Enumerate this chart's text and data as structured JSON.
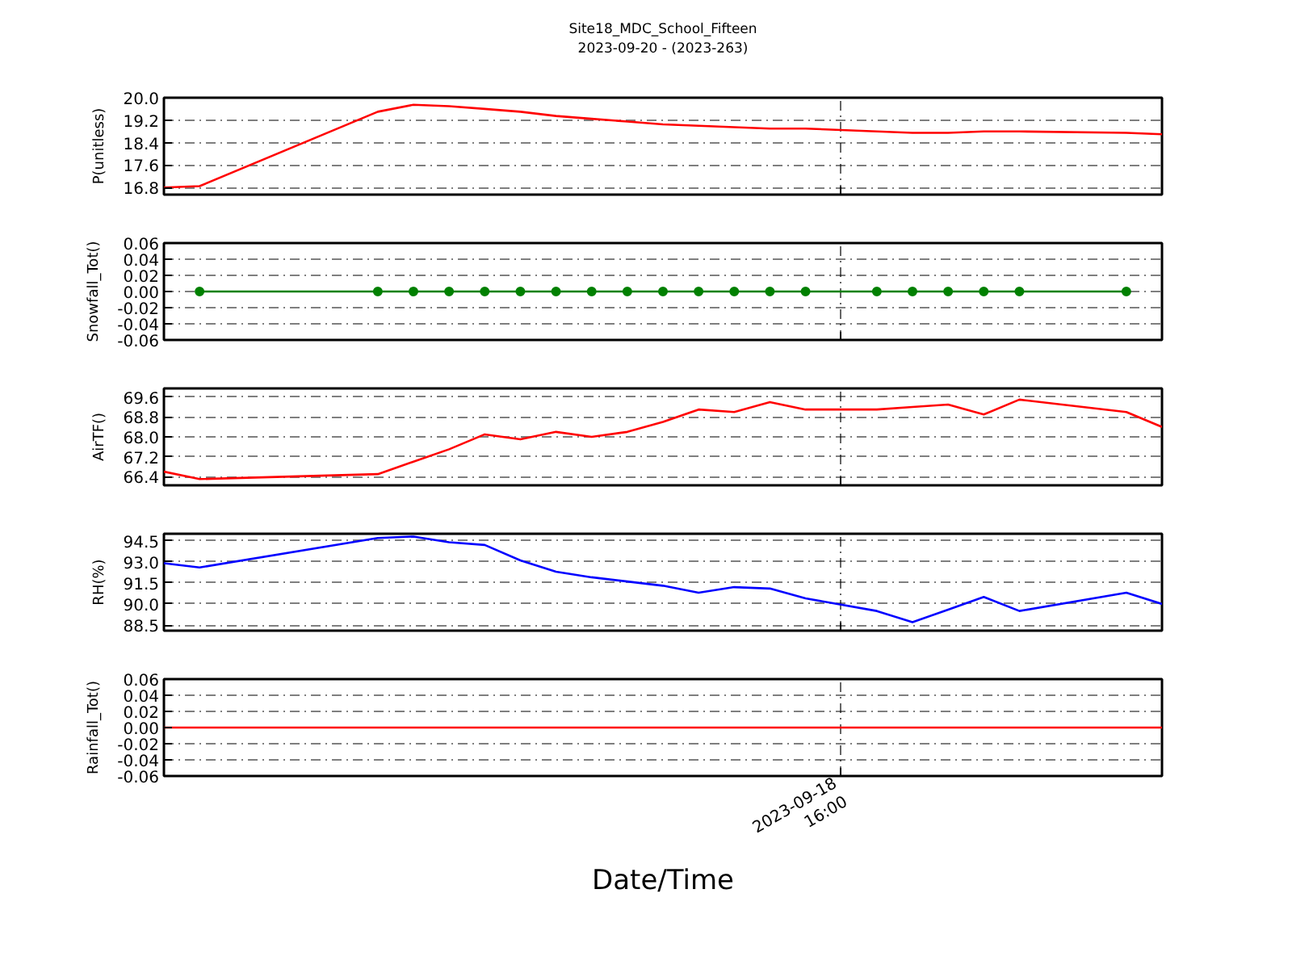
{
  "chart_data": [
    {
      "type": "line",
      "title": "Site18_MDC_School_Fifteen",
      "subtitle": "2023-09-20 - (2023-263)",
      "ylabel": "P(unitless)",
      "categories": [
        null,
        null,
        null,
        null,
        null,
        null,
        null,
        null,
        null,
        null,
        null,
        null,
        null,
        null,
        null,
        null,
        null,
        null,
        null,
        null,
        null,
        null,
        null,
        null,
        null,
        null,
        null,
        null,
        null
      ],
      "series": [
        {
          "color": "#ff0000",
          "values": [
            16.8,
            16.85,
            null,
            null,
            null,
            null,
            19.5,
            19.75,
            19.7,
            19.6,
            19.5,
            19.35,
            19.25,
            19.15,
            19.05,
            19.0,
            18.95,
            18.9,
            18.9,
            null,
            18.8,
            18.75,
            18.75,
            18.8,
            18.8,
            null,
            null,
            18.75,
            18.7
          ]
        }
      ],
      "ylim": [
        16.55,
        20.0
      ],
      "yticks": [
        16.8,
        17.6,
        18.4,
        19.2,
        {
          "value": 20,
          "label": "20.0"
        }
      ],
      "grid": true
    },
    {
      "type": "line",
      "ylabel": "Snowfall_Tot()",
      "marker": "circle",
      "categories": [
        null,
        null,
        null,
        null,
        null,
        null,
        null,
        null,
        null,
        null,
        null,
        null,
        null,
        null,
        null,
        null,
        null,
        null,
        null,
        null,
        null,
        null,
        null,
        null,
        null,
        null,
        null,
        null,
        null
      ],
      "series": [
        {
          "color": "#008000",
          "values": [
            null,
            0,
            null,
            null,
            null,
            null,
            0,
            0,
            0,
            0,
            0,
            0,
            0,
            0,
            0,
            0,
            0,
            0,
            0,
            null,
            0,
            0,
            0,
            0,
            0,
            null,
            null,
            0,
            null
          ]
        }
      ],
      "ylim": [
        -0.06,
        0.06
      ],
      "yticks": [
        -0.06,
        -0.04,
        -0.02,
        {
          "value": 0,
          "label": "0.00"
        },
        0.02,
        0.04,
        0.06
      ],
      "grid": true
    },
    {
      "type": "line",
      "ylabel": "AirTF()",
      "categories": [
        null,
        null,
        null,
        null,
        null,
        null,
        null,
        null,
        null,
        null,
        null,
        null,
        null,
        null,
        null,
        null,
        null,
        null,
        null,
        null,
        null,
        null,
        null,
        null,
        null,
        null,
        null,
        null,
        null
      ],
      "series": [
        {
          "color": "#ff0000",
          "values": [
            66.6,
            66.3,
            null,
            null,
            null,
            null,
            66.5,
            67.0,
            67.5,
            68.1,
            67.9,
            68.2,
            68.0,
            68.2,
            68.6,
            69.1,
            69.0,
            69.4,
            69.1,
            null,
            69.1,
            69.2,
            69.3,
            68.9,
            69.5,
            null,
            null,
            69.0,
            68.4
          ]
        }
      ],
      "ylim": [
        66.05,
        69.95
      ],
      "yticks": [
        66.4,
        67.2,
        {
          "value": 68,
          "label": "68.0"
        },
        68.8,
        69.6
      ],
      "grid": true
    },
    {
      "type": "line",
      "ylabel": "RH(%)",
      "categories": [
        null,
        null,
        null,
        null,
        null,
        null,
        null,
        null,
        null,
        null,
        null,
        null,
        null,
        null,
        null,
        null,
        null,
        null,
        null,
        null,
        null,
        null,
        null,
        null,
        null,
        null,
        null,
        null,
        null
      ],
      "series": [
        {
          "color": "#0000ff",
          "values": [
            92.9,
            92.6,
            null,
            null,
            null,
            null,
            94.7,
            94.8,
            94.4,
            94.2,
            93.1,
            92.3,
            91.9,
            91.6,
            91.3,
            90.8,
            91.2,
            91.1,
            90.4,
            null,
            89.5,
            88.7,
            89.6,
            90.5,
            89.5,
            null,
            null,
            90.8,
            90.0
          ]
        }
      ],
      "ylim": [
        88.1,
        95.0
      ],
      "yticks": [
        88.5,
        {
          "value": 90,
          "label": "90.0"
        },
        91.5,
        {
          "value": 93,
          "label": "93.0"
        },
        94.5
      ],
      "grid": true
    },
    {
      "type": "line",
      "ylabel": "Rainfall_Tot()",
      "xlabel": "Date/Time",
      "categories": [
        null,
        null,
        null,
        null,
        null,
        null,
        null,
        null,
        null,
        null,
        null,
        null,
        null,
        null,
        null,
        null,
        null,
        null,
        null,
        "2023-09-18\n16:00",
        null,
        null,
        null,
        null,
        null,
        null,
        null,
        null,
        null
      ],
      "series": [
        {
          "color": "#ff0000",
          "values": [
            0,
            0,
            null,
            null,
            null,
            null,
            0,
            0,
            0,
            0,
            0,
            0,
            0,
            0,
            0,
            0,
            0,
            0,
            0,
            null,
            0,
            0,
            0,
            0,
            0,
            null,
            null,
            0,
            0
          ]
        }
      ],
      "ylim": [
        -0.06,
        0.06
      ],
      "yticks": [
        -0.06,
        -0.04,
        -0.02,
        {
          "value": 0,
          "label": "0.00"
        },
        0.02,
        0.04,
        0.06
      ],
      "grid": true
    }
  ]
}
